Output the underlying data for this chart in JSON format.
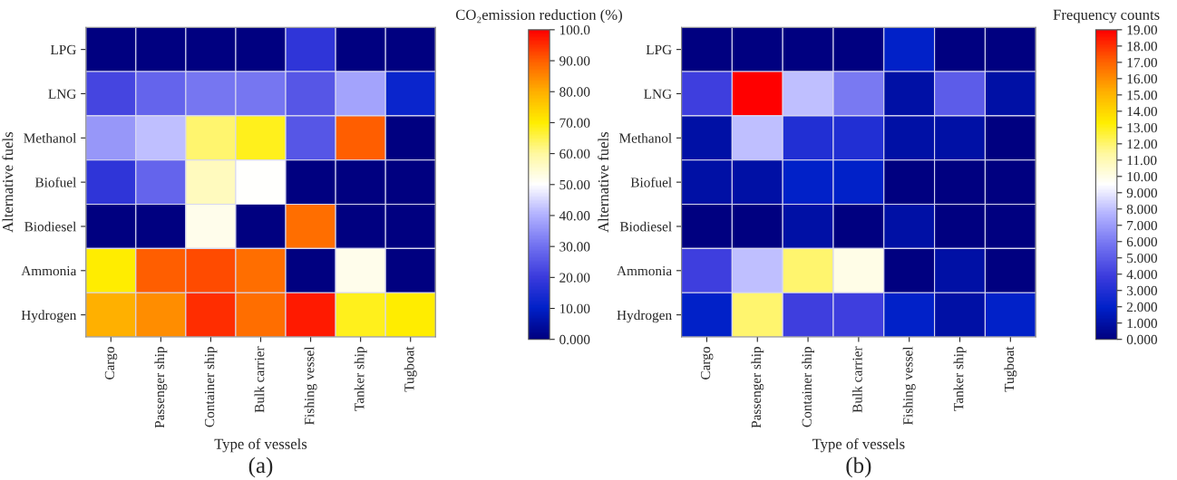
{
  "chart_data": [
    {
      "type": "heatmap",
      "xlabel": "Type of vessels",
      "ylabel": "Alternative fuels",
      "clabel": "CO₂emission reduction (%)",
      "categories": [
        "Cargo",
        "Passenger ship",
        "Container ship",
        "Bulk carrier",
        "Fishing vessel",
        "Tanker ship",
        "Tugboat"
      ],
      "y_categories": [
        "LPG",
        "LNG",
        "Methanol",
        "Biofuel",
        "Biodiesel",
        "Ammonia",
        "Hydrogen"
      ],
      "cells": [
        [
          0,
          0,
          0,
          0,
          18,
          0,
          0
        ],
        [
          22,
          28,
          31,
          31,
          25,
          38,
          12
        ],
        [
          36,
          42,
          63,
          68,
          25,
          90,
          0
        ],
        [
          18,
          28,
          57,
          50,
          0,
          0,
          0
        ],
        [
          0,
          0,
          52,
          0,
          88,
          0,
          0
        ],
        [
          70,
          90,
          92,
          88,
          0,
          52,
          0
        ],
        [
          80,
          84,
          95,
          88,
          97,
          68,
          70
        ]
      ],
      "clim": [
        0,
        100
      ],
      "cticks": [
        {
          "value": 0,
          "label": "0.000"
        },
        {
          "value": 10,
          "label": "10.00"
        },
        {
          "value": 20,
          "label": "20.00"
        },
        {
          "value": 30,
          "label": "30.00"
        },
        {
          "value": 40,
          "label": "40.00"
        },
        {
          "value": 50,
          "label": "50.00"
        },
        {
          "value": 60,
          "label": "60.00"
        },
        {
          "value": 70,
          "label": "70.00"
        },
        {
          "value": 80,
          "label": "80.00"
        },
        {
          "value": 90,
          "label": "90.00"
        },
        {
          "value": 100,
          "label": "100.0"
        }
      ],
      "annotations": [
        "(a)"
      ]
    },
    {
      "type": "heatmap",
      "xlabel": "Type of vessels",
      "ylabel": "Alternative fuels",
      "clabel": "Frequency counts",
      "categories": [
        "Cargo",
        "Passenger ship",
        "Container ship",
        "Bulk carrier",
        "Fishing vessel",
        "Tanker ship",
        "Tugboat"
      ],
      "y_categories": [
        "LPG",
        "LNG",
        "Methanol",
        "Biofuel",
        "Biodiesel",
        "Ammonia",
        "Hydrogen"
      ],
      "cells": [
        [
          0,
          0,
          0,
          0,
          2,
          0,
          0
        ],
        [
          4,
          19,
          8,
          6,
          1,
          5,
          1
        ],
        [
          1,
          8,
          3,
          3,
          1,
          1,
          0
        ],
        [
          1,
          1,
          2,
          2,
          0,
          0,
          0
        ],
        [
          0,
          0,
          1,
          0,
          1,
          0,
          0
        ],
        [
          4,
          8,
          12,
          10,
          0,
          1,
          0
        ],
        [
          2,
          12,
          4,
          4,
          2,
          1,
          2
        ]
      ],
      "clim": [
        0,
        19
      ],
      "cticks": [
        {
          "value": 0,
          "label": "0.000"
        },
        {
          "value": 1,
          "label": "1.000"
        },
        {
          "value": 2,
          "label": "2.000"
        },
        {
          "value": 3,
          "label": "3.000"
        },
        {
          "value": 4,
          "label": "4.000"
        },
        {
          "value": 5,
          "label": "5.000"
        },
        {
          "value": 6,
          "label": "6.000"
        },
        {
          "value": 7,
          "label": "7.000"
        },
        {
          "value": 8,
          "label": "8.000"
        },
        {
          "value": 9,
          "label": "9.000"
        },
        {
          "value": 10,
          "label": "10.00"
        },
        {
          "value": 11,
          "label": "11.00"
        },
        {
          "value": 12,
          "label": "12.00"
        },
        {
          "value": 13,
          "label": "13.00"
        },
        {
          "value": 14,
          "label": "14.00"
        },
        {
          "value": 15,
          "label": "15.00"
        },
        {
          "value": 16,
          "label": "16.00"
        },
        {
          "value": 17,
          "label": "17.00"
        },
        {
          "value": 18,
          "label": "18.00"
        },
        {
          "value": 19,
          "label": "19.00"
        }
      ],
      "annotations": [
        "(b)"
      ]
    }
  ]
}
